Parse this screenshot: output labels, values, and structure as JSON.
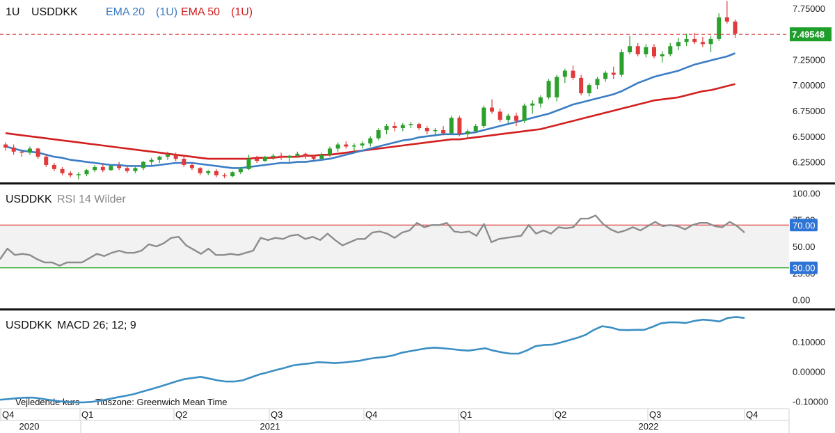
{
  "main_legend": {
    "interval": "1U",
    "symbol": "USDDKK",
    "ema20_label": "EMA 20",
    "ema20_interval": "(1U)",
    "ema50_label": "EMA 50",
    "ema50_interval": "(1U)"
  },
  "rsi_legend": {
    "symbol": "USDDKK",
    "indicator": "RSI 14 Wilder"
  },
  "macd_legend": {
    "symbol": "USDDKK",
    "indicator": "MACD 26; 12; 9"
  },
  "footer": {
    "note": "Vejledende kurs",
    "timezone": "Tidszone: Greenwich Mean Time"
  },
  "colors": {
    "up": "#2ca02c",
    "down": "#e03a3a",
    "ema20": "#3b7dc4",
    "ema50": "#d21f1f",
    "rsi_line": "#8c8c8c",
    "macd_line": "#3b8ec4",
    "overbought_line": "#e05555",
    "oversold_line": "#33aa33",
    "badge_blue": "#2d74d6",
    "price_badge": "#1f9e2c"
  },
  "chart_data": [
    {
      "type": "candlestick",
      "panel": "price",
      "ylim": [
        6.05,
        7.83
      ],
      "yticks": [
        "7.75000",
        "7.50000",
        "7.25000",
        "7.00000",
        "6.75000",
        "6.50000",
        "6.25000"
      ],
      "last_price": "7.49548",
      "series": [
        {
          "name": "USDDKK",
          "ohlc": [
            [
              6.42,
              6.44,
              6.36,
              6.39
            ],
            [
              6.39,
              6.42,
              6.32,
              6.35
            ],
            [
              6.35,
              6.37,
              6.3,
              6.34
            ],
            [
              6.34,
              6.4,
              6.32,
              6.38
            ],
            [
              6.38,
              6.39,
              6.28,
              6.3
            ],
            [
              6.3,
              6.32,
              6.2,
              6.22
            ],
            [
              6.22,
              6.24,
              6.16,
              6.18
            ],
            [
              6.18,
              6.2,
              6.12,
              6.14
            ],
            [
              6.14,
              6.16,
              6.1,
              6.12
            ],
            [
              6.12,
              6.15,
              6.08,
              6.13
            ],
            [
              6.13,
              6.18,
              6.11,
              6.17
            ],
            [
              6.17,
              6.22,
              6.15,
              6.2
            ],
            [
              6.2,
              6.23,
              6.15,
              6.17
            ],
            [
              6.17,
              6.22,
              6.16,
              6.21
            ],
            [
              6.21,
              6.25,
              6.17,
              6.19
            ],
            [
              6.19,
              6.21,
              6.14,
              6.16
            ],
            [
              6.16,
              6.2,
              6.14,
              6.19
            ],
            [
              6.19,
              6.26,
              6.17,
              6.25
            ],
            [
              6.25,
              6.29,
              6.22,
              6.27
            ],
            [
              6.27,
              6.31,
              6.24,
              6.3
            ],
            [
              6.3,
              6.35,
              6.27,
              6.32
            ],
            [
              6.32,
              6.34,
              6.26,
              6.28
            ],
            [
              6.28,
              6.3,
              6.2,
              6.22
            ],
            [
              6.22,
              6.24,
              6.17,
              6.19
            ],
            [
              6.19,
              6.2,
              6.12,
              6.14
            ],
            [
              6.14,
              6.17,
              6.12,
              6.16
            ],
            [
              6.16,
              6.18,
              6.1,
              6.12
            ],
            [
              6.12,
              6.14,
              6.09,
              6.11
            ],
            [
              6.11,
              6.16,
              6.1,
              6.15
            ],
            [
              6.15,
              6.2,
              6.13,
              6.18
            ],
            [
              6.18,
              6.32,
              6.17,
              6.28
            ],
            [
              6.28,
              6.31,
              6.24,
              6.26
            ],
            [
              6.26,
              6.31,
              6.25,
              6.3
            ],
            [
              6.3,
              6.33,
              6.27,
              6.31
            ],
            [
              6.31,
              6.34,
              6.27,
              6.29
            ],
            [
              6.29,
              6.32,
              6.25,
              6.31
            ],
            [
              6.31,
              6.35,
              6.29,
              6.33
            ],
            [
              6.33,
              6.34,
              6.28,
              6.3
            ],
            [
              6.3,
              6.32,
              6.26,
              6.28
            ],
            [
              6.28,
              6.34,
              6.27,
              6.32
            ],
            [
              6.32,
              6.4,
              6.3,
              6.38
            ],
            [
              6.38,
              6.44,
              6.35,
              6.42
            ],
            [
              6.42,
              6.45,
              6.38,
              6.4
            ],
            [
              6.4,
              6.43,
              6.36,
              6.41
            ],
            [
              6.41,
              6.45,
              6.38,
              6.43
            ],
            [
              6.43,
              6.5,
              6.4,
              6.48
            ],
            [
              6.48,
              6.58,
              6.46,
              6.56
            ],
            [
              6.56,
              6.62,
              6.52,
              6.6
            ],
            [
              6.6,
              6.64,
              6.55,
              6.58
            ],
            [
              6.58,
              6.63,
              6.55,
              6.61
            ],
            [
              6.61,
              6.64,
              6.58,
              6.62
            ],
            [
              6.62,
              6.63,
              6.56,
              6.58
            ],
            [
              6.58,
              6.6,
              6.52,
              6.55
            ],
            [
              6.55,
              6.58,
              6.5,
              6.56
            ],
            [
              6.56,
              6.6,
              6.51,
              6.53
            ],
            [
              6.53,
              6.7,
              6.52,
              6.68
            ],
            [
              6.68,
              6.7,
              6.5,
              6.52
            ],
            [
              6.52,
              6.57,
              6.48,
              6.55
            ],
            [
              6.55,
              6.62,
              6.53,
              6.6
            ],
            [
              6.6,
              6.8,
              6.58,
              6.78
            ],
            [
              6.78,
              6.86,
              6.72,
              6.74
            ],
            [
              6.74,
              6.77,
              6.64,
              6.66
            ],
            [
              6.66,
              6.72,
              6.63,
              6.7
            ],
            [
              6.7,
              6.73,
              6.6,
              6.65
            ],
            [
              6.65,
              6.82,
              6.63,
              6.8
            ],
            [
              6.8,
              6.85,
              6.72,
              6.82
            ],
            [
              6.82,
              6.9,
              6.78,
              6.88
            ],
            [
              6.88,
              7.06,
              6.86,
              7.04
            ],
            [
              6.88,
              7.1,
              6.84,
              7.08
            ],
            [
              7.08,
              7.16,
              7.02,
              7.14
            ],
            [
              7.14,
              7.19,
              7.05,
              7.07
            ],
            [
              7.07,
              7.1,
              6.9,
              6.92
            ],
            [
              6.92,
              7.02,
              6.89,
              7.0
            ],
            [
              7.0,
              7.08,
              6.96,
              7.06
            ],
            [
              7.06,
              7.14,
              7.03,
              7.12
            ],
            [
              7.12,
              7.18,
              7.06,
              7.1
            ],
            [
              7.1,
              7.35,
              7.08,
              7.32
            ],
            [
              7.32,
              7.48,
              7.3,
              7.38
            ],
            [
              7.38,
              7.41,
              7.28,
              7.3
            ],
            [
              7.3,
              7.4,
              7.27,
              7.37
            ],
            [
              7.37,
              7.4,
              7.26,
              7.28
            ],
            [
              7.28,
              7.33,
              7.22,
              7.3
            ],
            [
              7.3,
              7.41,
              7.28,
              7.38
            ],
            [
              7.38,
              7.46,
              7.34,
              7.42
            ],
            [
              7.42,
              7.5,
              7.38,
              7.45
            ],
            [
              7.45,
              7.51,
              7.4,
              7.42
            ],
            [
              7.42,
              7.47,
              7.37,
              7.4
            ],
            [
              7.4,
              7.48,
              7.32,
              7.45
            ],
            [
              7.45,
              7.7,
              7.43,
              7.66
            ],
            [
              7.66,
              7.82,
              7.6,
              7.62
            ],
            [
              7.62,
              7.64,
              7.46,
              7.5
            ]
          ]
        },
        {
          "name": "EMA 20",
          "values": [
            6.4,
            6.38,
            6.36,
            6.35,
            6.34,
            6.32,
            6.3,
            6.29,
            6.27,
            6.26,
            6.25,
            6.24,
            6.23,
            6.22,
            6.22,
            6.21,
            6.21,
            6.21,
            6.21,
            6.22,
            6.23,
            6.24,
            6.24,
            6.24,
            6.23,
            6.22,
            6.21,
            6.2,
            6.19,
            6.19,
            6.2,
            6.21,
            6.22,
            6.23,
            6.24,
            6.24,
            6.25,
            6.25,
            6.26,
            6.27,
            6.28,
            6.3,
            6.32,
            6.34,
            6.36,
            6.38,
            6.4,
            6.42,
            6.44,
            6.46,
            6.47,
            6.49,
            6.5,
            6.51,
            6.52,
            6.52,
            6.52,
            6.53,
            6.54,
            6.56,
            6.58,
            6.6,
            6.62,
            6.64,
            6.66,
            6.68,
            6.7,
            6.72,
            6.75,
            6.78,
            6.81,
            6.83,
            6.85,
            6.87,
            6.89,
            6.91,
            6.94,
            6.98,
            7.02,
            7.05,
            7.08,
            7.1,
            7.12,
            7.14,
            7.17,
            7.2,
            7.22,
            7.24,
            7.26,
            7.28,
            7.31
          ]
        },
        {
          "name": "EMA 50",
          "values": [
            6.53,
            6.52,
            6.51,
            6.5,
            6.49,
            6.48,
            6.47,
            6.46,
            6.45,
            6.44,
            6.43,
            6.42,
            6.41,
            6.4,
            6.39,
            6.38,
            6.37,
            6.36,
            6.35,
            6.34,
            6.33,
            6.32,
            6.31,
            6.3,
            6.29,
            6.28,
            6.28,
            6.28,
            6.28,
            6.28,
            6.28,
            6.29,
            6.29,
            6.29,
            6.3,
            6.3,
            6.3,
            6.31,
            6.31,
            6.32,
            6.32,
            6.33,
            6.34,
            6.35,
            6.36,
            6.37,
            6.38,
            6.39,
            6.4,
            6.41,
            6.42,
            6.43,
            6.44,
            6.45,
            6.46,
            6.47,
            6.47,
            6.48,
            6.49,
            6.5,
            6.51,
            6.52,
            6.53,
            6.54,
            6.55,
            6.56,
            6.57,
            6.59,
            6.61,
            6.63,
            6.65,
            6.67,
            6.69,
            6.71,
            6.73,
            6.75,
            6.77,
            6.79,
            6.81,
            6.83,
            6.85,
            6.86,
            6.87,
            6.88,
            6.9,
            6.92,
            6.94,
            6.95,
            6.97,
            6.99,
            7.01
          ]
        }
      ]
    },
    {
      "type": "line",
      "panel": "rsi",
      "ylim": [
        -8,
        108
      ],
      "yticks": [
        "100.00",
        "75.00",
        "50.00",
        "25.00",
        "0.00"
      ],
      "levels": [
        "70.00",
        "30.00"
      ],
      "series": [
        {
          "name": "RSI 14 Wilder",
          "values": [
            38,
            48,
            42,
            43,
            42,
            38,
            35,
            35,
            32,
            35,
            35,
            35,
            39,
            43,
            41,
            44,
            46,
            44,
            44,
            46,
            52,
            50,
            53,
            58,
            59,
            51,
            47,
            43,
            48,
            42,
            42,
            43,
            42,
            44,
            46,
            58,
            56,
            58,
            57,
            60,
            61,
            57,
            59,
            56,
            62,
            56,
            51,
            54,
            57,
            57,
            63,
            64,
            62,
            58,
            63,
            65,
            72,
            68,
            70,
            70,
            72,
            64,
            63,
            64,
            60,
            71,
            54,
            57,
            58,
            59,
            60,
            70,
            62,
            65,
            62,
            68,
            67,
            68,
            76,
            76,
            79,
            71,
            66,
            63,
            65,
            68,
            65,
            69,
            73,
            69,
            70,
            69,
            66,
            70,
            72,
            72,
            69,
            68,
            73,
            69,
            63
          ]
        }
      ]
    },
    {
      "type": "line",
      "panel": "macd",
      "ylim": [
        -0.125,
        0.205
      ],
      "yticks": [
        "0.10000",
        "0.00000",
        "-0.10000"
      ],
      "series": [
        {
          "name": "MACD 26; 12; 9",
          "values": [
            -0.095,
            -0.093,
            -0.09,
            -0.088,
            -0.088,
            -0.092,
            -0.096,
            -0.1,
            -0.102,
            -0.104,
            -0.104,
            -0.102,
            -0.098,
            -0.093,
            -0.087,
            -0.082,
            -0.076,
            -0.068,
            -0.06,
            -0.052,
            -0.043,
            -0.034,
            -0.026,
            -0.022,
            -0.018,
            -0.024,
            -0.03,
            -0.034,
            -0.034,
            -0.03,
            -0.02,
            -0.01,
            -0.003,
            0.005,
            0.012,
            0.02,
            0.024,
            0.027,
            0.031,
            0.03,
            0.028,
            0.03,
            0.033,
            0.036,
            0.042,
            0.046,
            0.049,
            0.054,
            0.063,
            0.068,
            0.073,
            0.078,
            0.08,
            0.078,
            0.075,
            0.072,
            0.07,
            0.074,
            0.078,
            0.07,
            0.064,
            0.06,
            0.06,
            0.071,
            0.085,
            0.089,
            0.09,
            0.097,
            0.105,
            0.113,
            0.123,
            0.14,
            0.152,
            0.148,
            0.14,
            0.139,
            0.14,
            0.14,
            0.15,
            0.162,
            0.165,
            0.165,
            0.163,
            0.17,
            0.174,
            0.172,
            0.168,
            0.18,
            0.183,
            0.18
          ]
        }
      ]
    }
  ],
  "time_axis": {
    "quarters": [
      "Q4",
      "Q1",
      "Q2",
      "Q3",
      "Q4",
      "Q1",
      "Q2",
      "Q3",
      "Q4"
    ],
    "years": [
      "2020",
      "2021",
      "2022"
    ]
  }
}
